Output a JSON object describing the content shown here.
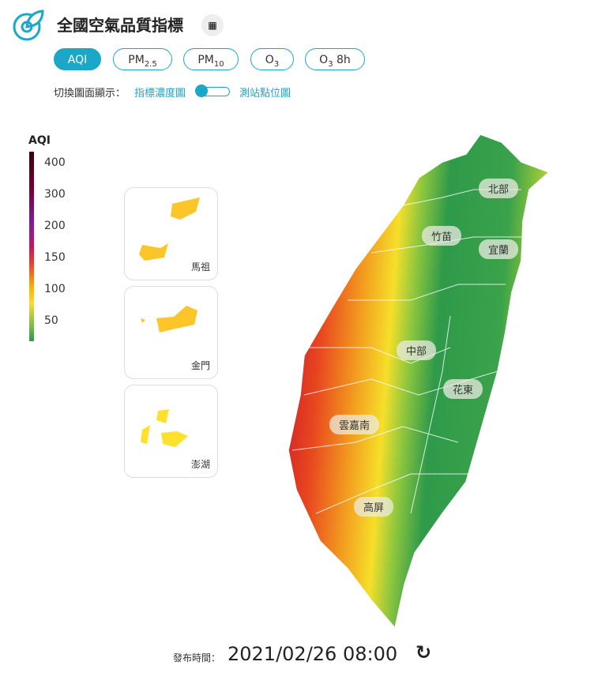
{
  "header": {
    "title": "全國空氣品質指標"
  },
  "tabs": [
    {
      "main": "AQI"
    },
    {
      "main": "PM",
      "sub": "2.5"
    },
    {
      "main": "PM",
      "sub": "10"
    },
    {
      "main": "O",
      "sub": "3"
    },
    {
      "main": "O",
      "sub": "3",
      "suffix": " 8h"
    }
  ],
  "toggle": {
    "label": "切換圖面顯示：",
    "left": "指標濃度圖",
    "right": "測站點位圖"
  },
  "legend": {
    "title": "AQI",
    "ticks": [
      "400",
      "300",
      "200",
      "150",
      "100",
      "50"
    ]
  },
  "insets": [
    "馬祖",
    "金門",
    "澎湖"
  ],
  "regions": [
    "北部",
    "竹苗",
    "宜蘭",
    "中部",
    "花東",
    "雲嘉南",
    "高屏"
  ],
  "footer": {
    "label": "發布時間：",
    "time": "2021/02/26 08:00"
  }
}
